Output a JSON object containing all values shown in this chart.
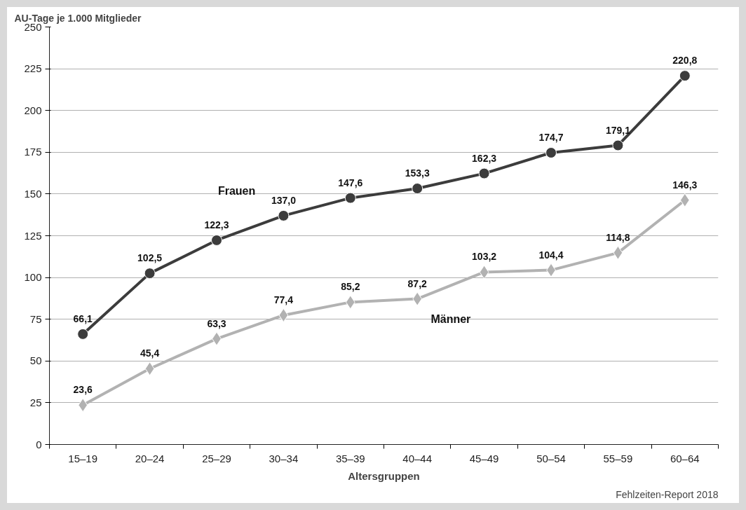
{
  "chart_data": {
    "type": "line",
    "ylabel": "AU-Tage je 1.000 Mitglieder",
    "xlabel": "Altersgruppen",
    "categories": [
      "15–19",
      "20–24",
      "25–29",
      "30–34",
      "35–39",
      "40–44",
      "45–49",
      "50–54",
      "55–59",
      "60–64"
    ],
    "series": [
      {
        "name": "Frauen",
        "color": "#3c3c3c",
        "marker": "circle",
        "values": [
          66.1,
          102.5,
          122.3,
          137.0,
          147.6,
          153.3,
          162.3,
          174.7,
          179.1,
          220.8
        ],
        "value_labels": [
          "66,1",
          "102,5",
          "122,3",
          "137,0",
          "147,6",
          "153,3",
          "162,3",
          "174,7",
          "179,1",
          "220,8"
        ]
      },
      {
        "name": "Männer",
        "color": "#b2b2b2",
        "marker": "diamond",
        "values": [
          23.6,
          45.4,
          63.3,
          77.4,
          85.2,
          87.2,
          103.2,
          104.4,
          114.8,
          146.3
        ],
        "value_labels": [
          "23,6",
          "45,4",
          "63,3",
          "77,4",
          "85,2",
          "87,2",
          "103,2",
          "104,4",
          "114,8",
          "146,3"
        ]
      }
    ],
    "ylim": [
      0,
      250
    ],
    "yticks": [
      0,
      25,
      50,
      75,
      100,
      125,
      150,
      175,
      200,
      225,
      250
    ],
    "grid": "y",
    "annotations": [
      "Fehlzeiten-Report 2018"
    ]
  }
}
